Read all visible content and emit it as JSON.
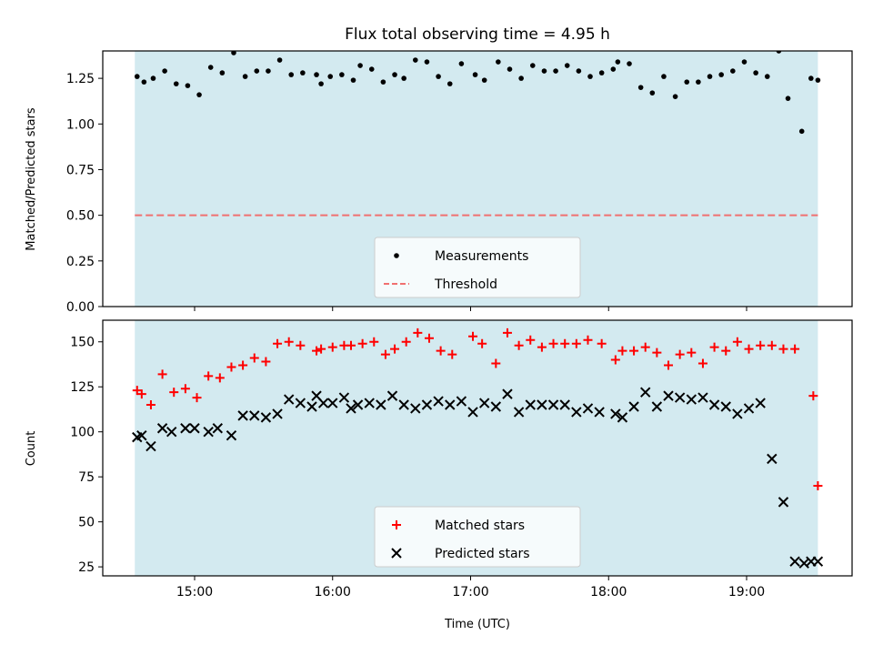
{
  "chart_data": [
    {
      "type": "scatter",
      "title": "Flux total observing time = 4.95 h",
      "xlabel": "",
      "ylabel": "Matched/Predicted stars",
      "ylim": [
        0,
        1.4
      ],
      "yticks": [
        0.0,
        0.25,
        0.5,
        0.75,
        1.0,
        1.25
      ],
      "ytick_labels": [
        "0.00",
        "0.25",
        "0.50",
        "0.75",
        "1.00",
        "1.25"
      ],
      "xtick_labels": [],
      "observing_window": [
        "14:34",
        "19:31"
      ],
      "observing_window_color": "#d3eaf0",
      "threshold": {
        "name": "Threshold",
        "value": 0.5,
        "color": "#f07070",
        "style": "dashed"
      },
      "legend": [
        "Measurements",
        "Threshold"
      ],
      "legend_position": "lower center",
      "series": [
        {
          "name": "Measurements",
          "color": "#000000",
          "marker": "dot",
          "x": [
            "14:35",
            "14:38",
            "14:42",
            "14:47",
            "14:52",
            "14:57",
            "15:02",
            "15:07",
            "15:12",
            "15:17",
            "15:22",
            "15:27",
            "15:32",
            "15:37",
            "15:42",
            "15:47",
            "15:53",
            "15:55",
            "15:59",
            "16:04",
            "16:09",
            "16:12",
            "16:17",
            "16:22",
            "16:27",
            "16:31",
            "16:36",
            "16:41",
            "16:46",
            "16:51",
            "16:56",
            "17:02",
            "17:06",
            "17:12",
            "17:17",
            "17:22",
            "17:27",
            "17:32",
            "17:37",
            "17:42",
            "17:47",
            "17:52",
            "17:57",
            "18:02",
            "18:04",
            "18:09",
            "18:14",
            "18:19",
            "18:24",
            "18:29",
            "18:34",
            "18:39",
            "18:44",
            "18:49",
            "18:54",
            "18:59",
            "19:04",
            "19:09",
            "19:14",
            "19:18",
            "19:24",
            "19:28",
            "19:31"
          ],
          "y": [
            1.26,
            1.23,
            1.25,
            1.29,
            1.22,
            1.21,
            1.16,
            1.31,
            1.28,
            1.39,
            1.26,
            1.29,
            1.29,
            1.35,
            1.27,
            1.28,
            1.27,
            1.22,
            1.26,
            1.27,
            1.24,
            1.32,
            1.3,
            1.23,
            1.27,
            1.25,
            1.35,
            1.34,
            1.26,
            1.22,
            1.33,
            1.27,
            1.24,
            1.34,
            1.3,
            1.25,
            1.32,
            1.29,
            1.29,
            1.32,
            1.29,
            1.26,
            1.28,
            1.3,
            1.34,
            1.33,
            1.2,
            1.17,
            1.26,
            1.15,
            1.23,
            1.23,
            1.26,
            1.27,
            1.29,
            1.34,
            1.28,
            1.26,
            1.4,
            1.14,
            0.96,
            1.25,
            1.24
          ]
        }
      ]
    },
    {
      "type": "scatter",
      "title": "",
      "xlabel": "Time (UTC)",
      "ylabel": "Count",
      "ylim": [
        20,
        162
      ],
      "yticks": [
        25,
        50,
        75,
        100,
        125,
        150
      ],
      "ytick_labels": [
        "25",
        "50",
        "75",
        "100",
        "125",
        "150"
      ],
      "xticks": [
        "15:00",
        "16:00",
        "17:00",
        "18:00",
        "19:00"
      ],
      "xtick_labels": [
        "15:00",
        "16:00",
        "17:00",
        "18:00",
        "19:00"
      ],
      "observing_window": [
        "14:34",
        "19:31"
      ],
      "observing_window_color": "#d3eaf0",
      "legend": [
        "Matched stars",
        "Predicted stars"
      ],
      "legend_position": "lower center",
      "series": [
        {
          "name": "Matched stars",
          "color": "#ff0000",
          "marker": "plus",
          "x": [
            "14:35",
            "14:37",
            "14:41",
            "14:46",
            "14:51",
            "14:56",
            "15:01",
            "15:06",
            "15:11",
            "15:16",
            "15:21",
            "15:26",
            "15:31",
            "15:36",
            "15:41",
            "15:46",
            "15:53",
            "15:55",
            "16:00",
            "16:05",
            "16:08",
            "16:13",
            "16:18",
            "16:23",
            "16:27",
            "16:32",
            "16:37",
            "16:42",
            "16:47",
            "16:52",
            "17:01",
            "17:05",
            "17:11",
            "17:16",
            "17:21",
            "17:26",
            "17:31",
            "17:36",
            "17:41",
            "17:46",
            "17:51",
            "17:57",
            "18:03",
            "18:06",
            "18:11",
            "18:16",
            "18:21",
            "18:26",
            "18:31",
            "18:36",
            "18:41",
            "18:46",
            "18:51",
            "18:56",
            "19:01",
            "19:06",
            "19:11",
            "19:16",
            "19:21",
            "19:29",
            "19:31"
          ],
          "y": [
            123,
            121,
            115,
            132,
            122,
            124,
            119,
            131,
            130,
            136,
            137,
            141,
            139,
            149,
            150,
            148,
            145,
            146,
            147,
            148,
            148,
            149,
            150,
            143,
            146,
            150,
            155,
            152,
            145,
            143,
            153,
            149,
            138,
            155,
            148,
            151,
            147,
            149,
            149,
            149,
            151,
            149,
            140,
            145,
            145,
            147,
            144,
            137,
            143,
            144,
            138,
            147,
            145,
            150,
            146,
            148,
            148,
            146,
            146,
            120,
            70
          ]
        },
        {
          "name": "Predicted stars",
          "color": "#000000",
          "marker": "x",
          "x": [
            "14:35",
            "14:37",
            "14:41",
            "14:46",
            "14:50",
            "14:56",
            "15:00",
            "15:06",
            "15:10",
            "15:16",
            "15:21",
            "15:26",
            "15:31",
            "15:36",
            "15:41",
            "15:46",
            "15:51",
            "15:53",
            "15:56",
            "16:00",
            "16:05",
            "16:08",
            "16:11",
            "16:16",
            "16:21",
            "16:26",
            "16:31",
            "16:36",
            "16:41",
            "16:46",
            "16:51",
            "16:56",
            "17:01",
            "17:06",
            "17:11",
            "17:16",
            "17:21",
            "17:26",
            "17:31",
            "17:36",
            "17:41",
            "17:46",
            "17:51",
            "17:56",
            "18:03",
            "18:06",
            "18:11",
            "18:16",
            "18:21",
            "18:26",
            "18:31",
            "18:36",
            "18:41",
            "18:46",
            "18:51",
            "18:56",
            "19:01",
            "19:06",
            "19:11",
            "19:16",
            "19:21",
            "19:25",
            "19:28",
            "19:31"
          ],
          "y": [
            97,
            98,
            92,
            102,
            100,
            102,
            102,
            100,
            102,
            98,
            109,
            109,
            108,
            110,
            118,
            116,
            114,
            120,
            116,
            116,
            119,
            113,
            115,
            116,
            115,
            120,
            115,
            113,
            115,
            117,
            115,
            117,
            111,
            116,
            114,
            121,
            111,
            115,
            115,
            115,
            115,
            111,
            113,
            111,
            110,
            108,
            114,
            122,
            114,
            120,
            119,
            118,
            119,
            115,
            114,
            110,
            113,
            116,
            85,
            61,
            28,
            27,
            28,
            28
          ]
        }
      ]
    }
  ]
}
